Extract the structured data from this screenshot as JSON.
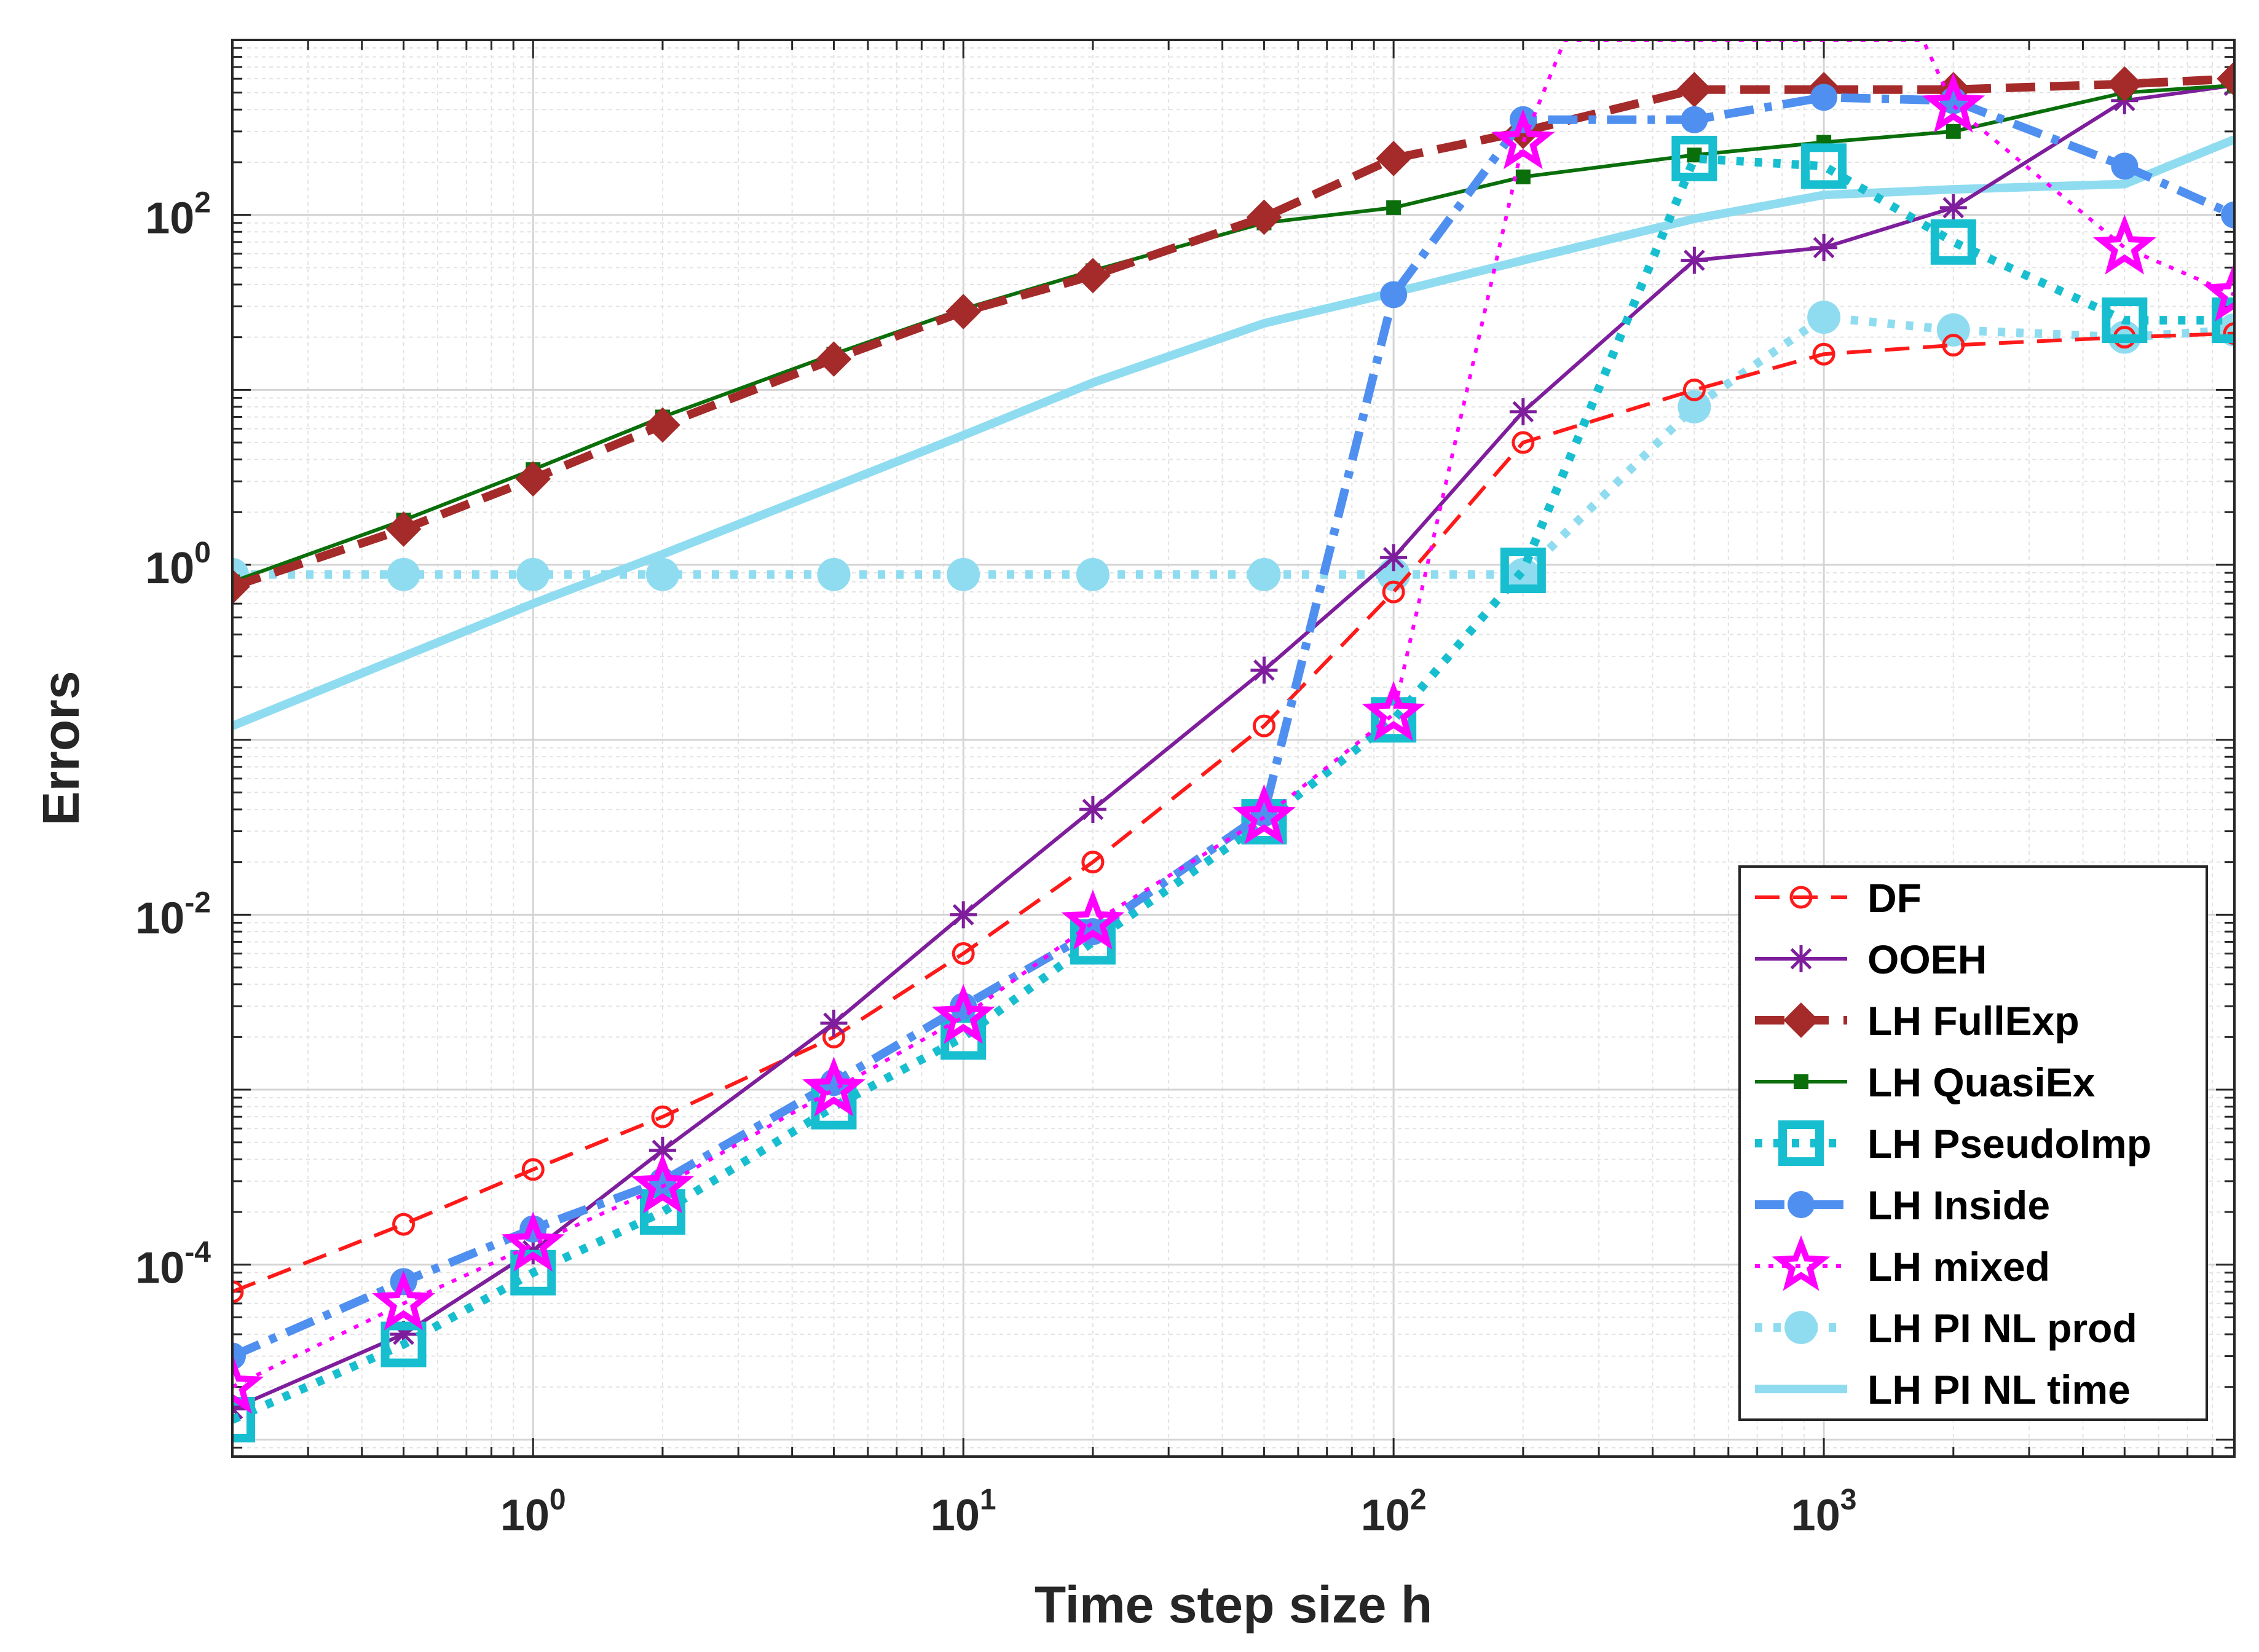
{
  "chart_data": {
    "type": "line",
    "xscale": "log",
    "yscale": "log",
    "xlim": [
      0.2,
      9000
    ],
    "ylim": [
      8e-06,
      1000
    ],
    "xlabel": "Time step size h",
    "ylabel": "Errors",
    "x_ticks": [
      {
        "value": 1,
        "base": "10",
        "exp": "0"
      },
      {
        "value": 10,
        "base": "10",
        "exp": "1"
      },
      {
        "value": 100,
        "base": "10",
        "exp": "2"
      },
      {
        "value": 1000,
        "base": "10",
        "exp": "3"
      }
    ],
    "y_ticks": [
      {
        "value": 0.0001,
        "base": "10",
        "exp": "-4"
      },
      {
        "value": 0.01,
        "base": "10",
        "exp": "-2"
      },
      {
        "value": 1,
        "base": "10",
        "exp": "0"
      },
      {
        "value": 100,
        "base": "10",
        "exp": "2"
      }
    ],
    "grid": true,
    "legend_position": "bottom-right",
    "series": [
      {
        "name": "DF",
        "color": "#ff1a1a",
        "dash": "dashed",
        "marker": "circle",
        "thick": false,
        "x": [
          0.2,
          0.5,
          1,
          2,
          5,
          10,
          20,
          50,
          100,
          200,
          500,
          1000,
          2000,
          5000,
          9000
        ],
        "y": [
          7e-05,
          0.00017,
          0.00035,
          0.0007,
          0.002,
          0.006,
          0.02,
          0.12,
          0.7,
          5,
          10,
          16,
          18,
          20,
          21
        ]
      },
      {
        "name": " OOEH",
        "color": "#7e1e9c",
        "dash": "solid",
        "marker": "asterisk",
        "thick": false,
        "x": [
          0.2,
          0.5,
          1,
          2,
          5,
          10,
          20,
          50,
          100,
          200,
          500,
          1000,
          2000,
          5000,
          9000
        ],
        "y": [
          1.5e-05,
          4e-05,
          0.00012,
          0.00045,
          0.0024,
          0.01,
          0.04,
          0.25,
          1.1,
          7.5,
          55,
          65,
          110,
          450,
          550
        ]
      },
      {
        "name": "LH FullExp",
        "color": "#a52a2a",
        "dash": "dashed",
        "marker": "diamond",
        "thick": true,
        "x": [
          0.2,
          0.5,
          1,
          2,
          5,
          10,
          20,
          50,
          100,
          200,
          500,
          1000,
          2000,
          5000,
          9000
        ],
        "y": [
          0.75,
          1.6,
          3.1,
          6.3,
          15,
          28,
          45,
          97,
          210,
          300,
          520,
          520,
          520,
          560,
          600
        ]
      },
      {
        "name": "LH QuasiEx",
        "color": "#0a6e0a",
        "dash": "solid",
        "marker": "square",
        "thick": false,
        "x": [
          0.2,
          0.5,
          1,
          2,
          5,
          10,
          20,
          50,
          100,
          200,
          500,
          1000,
          2000,
          5000,
          9000
        ],
        "y": [
          0.8,
          1.8,
          3.5,
          7,
          16,
          29,
          48,
          90,
          110,
          165,
          220,
          260,
          300,
          500,
          550
        ]
      },
      {
        "name": "LH PseudoImp",
        "color": "#17becf",
        "dash": "dotted",
        "marker": "square-open",
        "thick": true,
        "x": [
          0.2,
          0.5,
          1,
          2,
          5,
          10,
          20,
          50,
          100,
          200,
          500,
          1000,
          2000,
          5000,
          9000
        ],
        "y": [
          1.3e-05,
          3.5e-05,
          9e-05,
          0.0002,
          0.0008,
          0.002,
          0.007,
          0.034,
          0.13,
          0.93,
          210,
          190,
          70,
          25,
          25
        ]
      },
      {
        "name": "LH Inside",
        "color": "#4f8ff0",
        "dash": "dashdot",
        "marker": "dot",
        "thick": true,
        "x": [
          0.2,
          0.5,
          1,
          2,
          5,
          10,
          20,
          50,
          100,
          200,
          500,
          1000,
          2000,
          5000,
          9000
        ],
        "y": [
          3e-05,
          8e-05,
          0.00016,
          0.0003,
          0.0011,
          0.003,
          0.008,
          0.038,
          35,
          350,
          350,
          470,
          450,
          190,
          100
        ]
      },
      {
        "name": "LH mixed",
        "color": "#ff00ff",
        "dash": "dotted",
        "marker": "star",
        "thick": false,
        "x": [
          0.2,
          0.5,
          1,
          2,
          5,
          10,
          20,
          50,
          100,
          200,
          250,
          1700,
          2000,
          5000,
          9000
        ],
        "y": [
          2e-05,
          6e-05,
          0.00013,
          0.00028,
          0.001,
          0.0026,
          0.009,
          0.036,
          0.14,
          260,
          1000,
          1000,
          420,
          65,
          35
        ]
      },
      {
        "name": "LH PI NL prod",
        "color": "#8fdcf0",
        "dash": "dotted",
        "marker": "dot-large",
        "thick": true,
        "x": [
          0.2,
          0.5,
          1,
          2,
          5,
          10,
          20,
          50,
          100,
          200,
          500,
          1000,
          2000,
          5000,
          9000
        ],
        "y": [
          0.88,
          0.88,
          0.88,
          0.88,
          0.88,
          0.88,
          0.88,
          0.88,
          0.88,
          0.88,
          8,
          26,
          22,
          20,
          22
        ]
      },
      {
        "name": "LH PI NL time",
        "color": "#8fdcf0",
        "dash": "solid",
        "marker": "none",
        "thick": true,
        "x": [
          0.2,
          0.5,
          1,
          2,
          5,
          10,
          20,
          50,
          100,
          200,
          500,
          1000,
          2000,
          5000,
          9000
        ],
        "y": [
          0.12,
          0.3,
          0.6,
          1.15,
          2.8,
          5.5,
          11,
          24,
          36,
          55,
          95,
          130,
          140,
          150,
          270
        ]
      }
    ]
  }
}
